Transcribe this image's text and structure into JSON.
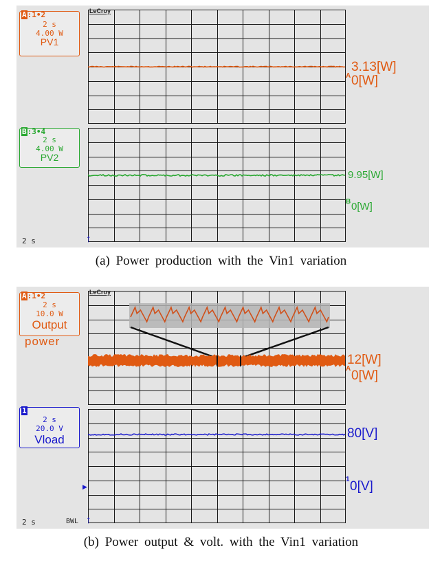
{
  "colors": {
    "orange": "#e05a12",
    "green": "#2aa832",
    "blue": "#1a1acc",
    "grid_line": "#1a1a1a",
    "panel_bg": "#e4e4e4"
  },
  "brand": "LeCroy",
  "panel_a": {
    "timebase": "2 s",
    "ch_a": {
      "header_letter": "A",
      "header_rest": ":1•2",
      "timebase": "2 s",
      "scale": "4.00 W",
      "name": "PV1",
      "level_label": "3.13[W]",
      "zero_marker": "A",
      "zero_label": "0[W]"
    },
    "ch_b": {
      "header_letter": "B",
      "header_rest": ":3•4",
      "timebase": "2 s",
      "scale": "4.00 W",
      "name": "PV2",
      "level_label": "9.95[W]",
      "zero_marker": "B",
      "zero_label": "0[W]"
    },
    "caption": "(a) Power production with the Vin1 variation"
  },
  "panel_b": {
    "timebase": "2 s",
    "bwl": "BWL",
    "ch_a": {
      "header_letter": "A",
      "header_rest": ":1•2",
      "timebase": "2 s",
      "scale": "10.0 W",
      "name": "Output",
      "name2": "power",
      "level_label": "12[W]",
      "zero_marker": "A",
      "zero_label": "0[W]"
    },
    "ch_1": {
      "header_letter": "1",
      "timebase": "2 s",
      "scale": "20.0 V",
      "name": "Vload",
      "level_label": "80[V]",
      "zero_marker": "1",
      "zero_label": "0[V]"
    },
    "caption": "(b) Power output & volt. with the Vin1 variation"
  }
}
